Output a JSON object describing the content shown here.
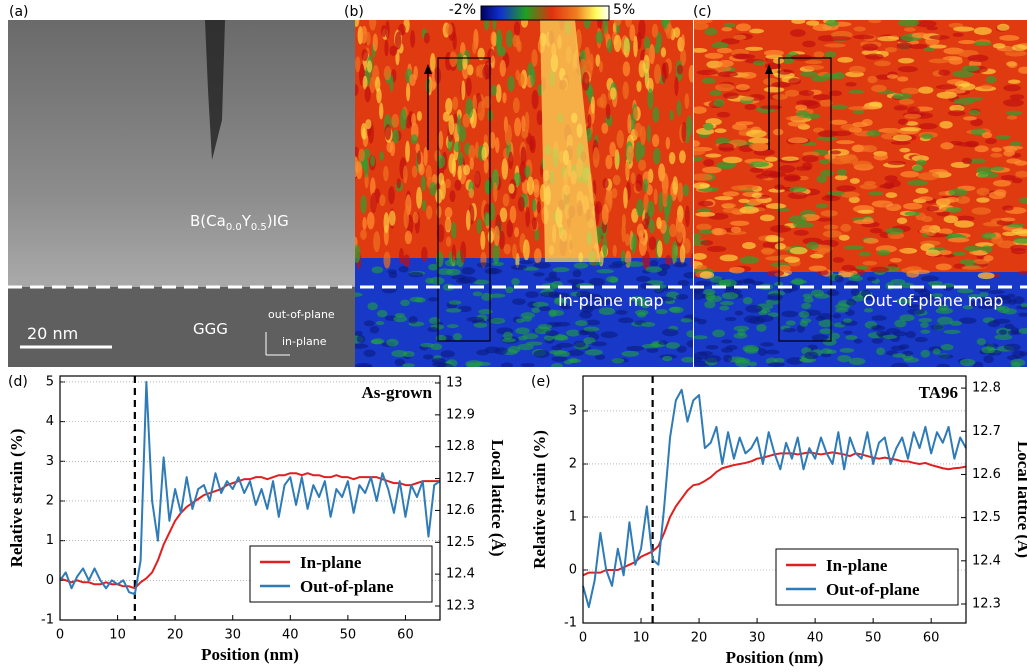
{
  "image_panels": {
    "a_label": "(a)",
    "material_parts": [
      "B(Ca",
      "0.0",
      "Y",
      "0.5",
      ")IG"
    ],
    "substrate": "GGG",
    "scale_bar": "20 nm",
    "axis_out": "out-of-plane",
    "axis_in": "in-plane",
    "b_label": "(b)",
    "c_label": "(c)",
    "colorbar_min": "-2%",
    "colorbar_max": "5%",
    "b_caption": "In-plane map",
    "c_caption": "Out-of-plane map"
  },
  "chart_data": [
    {
      "type": "line",
      "panel": "(d)",
      "annotation": "As-grown",
      "xlabel": "Position (nm)",
      "ylabel": "Relative strain (%)",
      "y2label": "Local lattice (Å)",
      "xlim": [
        0,
        66
      ],
      "xticks": [
        0,
        10,
        20,
        30,
        40,
        50,
        60
      ],
      "ylim": [
        -1,
        5.15
      ],
      "yticks": [
        -1,
        0,
        1,
        2,
        3,
        4,
        5
      ],
      "y2lim": [
        12.256,
        13.022
      ],
      "y2ticks": [
        12.3,
        12.4,
        12.5,
        12.6,
        12.7,
        12.8,
        12.9,
        13
      ],
      "grid": true,
      "legend": "lower-right",
      "marker_x": 13,
      "x": [
        0,
        1,
        2,
        3,
        4,
        5,
        6,
        7,
        8,
        9,
        10,
        11,
        12,
        13,
        14,
        15,
        16,
        17,
        18,
        19,
        20,
        21,
        22,
        23,
        24,
        25,
        26,
        27,
        28,
        29,
        30,
        31,
        32,
        33,
        34,
        35,
        36,
        37,
        38,
        39,
        40,
        41,
        42,
        43,
        44,
        45,
        46,
        47,
        48,
        49,
        50,
        51,
        52,
        53,
        54,
        55,
        56,
        57,
        58,
        59,
        60,
        61,
        62,
        63,
        64,
        65,
        66
      ],
      "series": [
        {
          "name": "In-plane",
          "color": "#e02020",
          "values": [
            0.05,
            0,
            -0.05,
            0,
            -0.05,
            -0.05,
            -0.1,
            -0.1,
            -0.05,
            -0.1,
            -0.1,
            -0.15,
            -0.15,
            -0.2,
            -0.05,
            0.05,
            0.2,
            0.5,
            0.9,
            1.2,
            1.5,
            1.7,
            1.85,
            1.95,
            2.05,
            2.15,
            2.2,
            2.25,
            2.3,
            2.4,
            2.45,
            2.5,
            2.55,
            2.55,
            2.6,
            2.6,
            2.55,
            2.6,
            2.65,
            2.65,
            2.7,
            2.7,
            2.65,
            2.7,
            2.65,
            2.65,
            2.6,
            2.6,
            2.65,
            2.6,
            2.6,
            2.55,
            2.6,
            2.6,
            2.6,
            2.6,
            2.55,
            2.5,
            2.45,
            2.45,
            2.4,
            2.4,
            2.45,
            2.5,
            2.5,
            2.5,
            2.5
          ]
        },
        {
          "name": "Out-of-plane",
          "color": "#2e7bb8",
          "values": [
            0,
            0.2,
            -0.2,
            0.1,
            0.3,
            0,
            0.3,
            0,
            -0.2,
            0,
            -0.1,
            0,
            -0.3,
            -0.35,
            0.5,
            5,
            2,
            1,
            3.1,
            1.5,
            2.3,
            1.7,
            2.6,
            1.8,
            2.3,
            2.4,
            2,
            2.7,
            2.2,
            2.5,
            2.3,
            2.6,
            2.2,
            2.5,
            1.9,
            2.3,
            1.8,
            2.5,
            1.6,
            2.4,
            2.6,
            1.9,
            2.6,
            1.8,
            2.4,
            2.1,
            2.5,
            1.6,
            2.3,
            2.1,
            2.5,
            1.7,
            2.4,
            2.2,
            2.6,
            2,
            2.7,
            2.3,
            1.7,
            2.5,
            1.6,
            2.4,
            2.1,
            2.5,
            1.1,
            2.4,
            2.5
          ]
        }
      ]
    },
    {
      "type": "line",
      "panel": "(e)",
      "annotation": "TA96",
      "xlabel": "Position (nm)",
      "ylabel": "Relative strain (%)",
      "y2label": "Local lattice (Å)",
      "xlim": [
        0,
        66
      ],
      "xticks": [
        0,
        10,
        20,
        30,
        40,
        50,
        60
      ],
      "ylim": [
        -1,
        3.66
      ],
      "yticks": [
        -1,
        0,
        1,
        2,
        3
      ],
      "y2lim": [
        12.256,
        12.828
      ],
      "y2ticks": [
        12.3,
        12.4,
        12.5,
        12.6,
        12.7,
        12.8
      ],
      "grid": true,
      "legend": "lower-right",
      "marker_x": 12,
      "x": [
        0,
        1,
        2,
        3,
        4,
        5,
        6,
        7,
        8,
        9,
        10,
        11,
        12,
        13,
        14,
        15,
        16,
        17,
        18,
        19,
        20,
        21,
        22,
        23,
        24,
        25,
        26,
        27,
        28,
        29,
        30,
        31,
        32,
        33,
        34,
        35,
        36,
        37,
        38,
        39,
        40,
        41,
        42,
        43,
        44,
        45,
        46,
        47,
        48,
        49,
        50,
        51,
        52,
        53,
        54,
        55,
        56,
        57,
        58,
        59,
        60,
        61,
        62,
        63,
        64,
        65,
        66
      ],
      "series": [
        {
          "name": "In-plane",
          "color": "#e02020",
          "values": [
            -0.1,
            -0.05,
            -0.05,
            -0.05,
            0,
            0,
            0,
            0.05,
            0.1,
            0.15,
            0.25,
            0.3,
            0.35,
            0.45,
            0.7,
            1,
            1.2,
            1.35,
            1.5,
            1.6,
            1.62,
            1.68,
            1.75,
            1.85,
            1.92,
            1.95,
            1.98,
            2,
            2.02,
            2.05,
            2.1,
            2.12,
            2.15,
            2.18,
            2.2,
            2.2,
            2.2,
            2.18,
            2.2,
            2.22,
            2.2,
            2.18,
            2.2,
            2.22,
            2.2,
            2.18,
            2.15,
            2.2,
            2.18,
            2.15,
            2.12,
            2.1,
            2.12,
            2.1,
            2.08,
            2.05,
            2.05,
            2.02,
            2,
            2.02,
            1.98,
            1.95,
            1.92,
            1.9,
            1.92,
            1.93,
            1.95
          ]
        },
        {
          "name": "Out-of-plane",
          "color": "#2e7bb8",
          "values": [
            -0.3,
            -0.7,
            -0.2,
            0.7,
            0,
            -0.3,
            0.4,
            -0.1,
            0.9,
            0.1,
            0.4,
            1.2,
            0.2,
            0.1,
            1.2,
            2.5,
            3.2,
            3.4,
            2.8,
            3.2,
            3.3,
            2.3,
            2.4,
            2.7,
            2,
            2.6,
            2.1,
            2.5,
            2.2,
            2.3,
            2.5,
            2,
            2.6,
            2.2,
            1.9,
            2.4,
            2.1,
            2.5,
            1.9,
            2.3,
            2.1,
            2.5,
            2.2,
            2,
            2.6,
            1.9,
            2.5,
            2.2,
            2.1,
            2.6,
            2,
            2.4,
            2.5,
            2,
            2.3,
            2.5,
            2.1,
            2.6,
            2.3,
            2.7,
            2.2,
            2.6,
            2.4,
            2.7,
            2.1,
            2.5,
            2.3
          ]
        }
      ]
    }
  ]
}
